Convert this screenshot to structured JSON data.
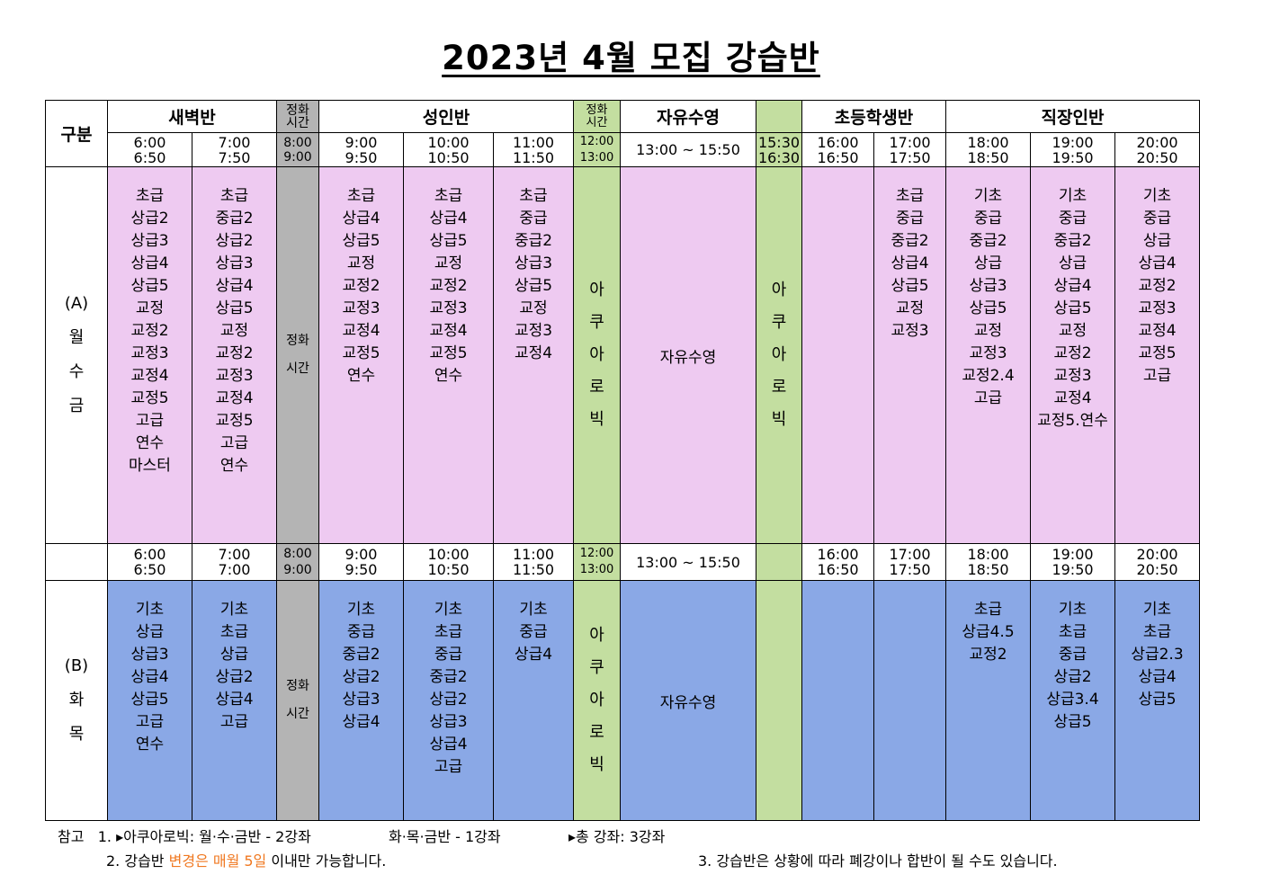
{
  "title": "2023년 4월 모집 강습반",
  "header": {
    "gubun": "구분",
    "saebyeok": "새벽반",
    "break_label": "정화\n시간",
    "seongin": "성인반",
    "jayu": "자유수영",
    "chodeung": "초등학생반",
    "jikjang": "직장인반"
  },
  "times_a": [
    "6:00\n6:50",
    "7:00\n7:50",
    "8:00\n9:00",
    "9:00\n9:50",
    "10:00\n10:50",
    "11:00\n11:50",
    "12:00\n13:00",
    "13:00 ~ 15:50",
    "15:30\n16:30",
    "16:00\n16:50",
    "17:00\n17:50",
    "18:00\n18:50",
    "19:00\n19:50",
    "20:00\n20:50"
  ],
  "times_b": [
    "6:00\n6:50",
    "7:00\n7:00",
    "8:00\n9:00",
    "9:00\n9:50",
    "10:00\n10:50",
    "11:00\n11:50",
    "12:00\n13:00",
    "13:00 ~ 15:50",
    "",
    "16:00\n16:50",
    "17:00\n17:50",
    "18:00\n18:50",
    "19:00\n19:50",
    "20:00\n20:50"
  ],
  "group_a": {
    "label": "(A)\n월\n수\n금"
  },
  "group_b": {
    "label": "(B)\n화\n목"
  },
  "break_cell": "정화\n시간",
  "aqua": "아\n쿠\n아\n로\n빅",
  "free_swim": "자유수영",
  "classes_a": {
    "c6": "초급\n상급2\n상급3\n상급4\n상급5\n교정\n교정2\n교정3\n교정4\n교정5\n고급\n연수\n마스터",
    "c7": "초급\n중급2\n상급2\n상급3\n상급4\n상급5\n교정\n교정2\n교정3\n교정4\n교정5\n고급\n연수",
    "c9": "초급\n상급4\n상급5\n교정\n교정2\n교정3\n교정4\n교정5\n연수",
    "c10": "초급\n상급4\n상급5\n교정\n교정2\n교정3\n교정4\n교정5\n연수",
    "c11": "초급\n중급\n중급2\n상급3\n상급5\n교정\n교정3\n교정4",
    "c16": "",
    "c17": "초급\n중급\n중급2\n상급4\n상급5\n교정\n교정3",
    "c18": "기초\n중급\n중급2\n상급\n상급3\n상급5\n교정\n교정3\n교정2.4\n고급",
    "c19": "기초\n중급\n중급2\n상급\n상급4\n상급5\n교정\n교정2\n교정3\n교정4\n교정5.연수",
    "c20": "기초\n중급\n상급\n상급4\n교정2\n교정3\n교정4\n교정5\n고급"
  },
  "classes_b": {
    "c6": "기초\n상급\n상급3\n상급4\n상급5\n고급\n연수",
    "c7": "기초\n초급\n상급\n상급2\n상급4\n고급",
    "c9": "기초\n중급\n중급2\n상급2\n상급3\n상급4",
    "c10": "기초\n초급\n중급\n중급2\n상급2\n상급3\n상급4\n고급",
    "c11": "기초\n중급\n상급4",
    "c16": "",
    "c17": "",
    "c18": "초급\n상급4.5\n교정2",
    "c19": "기초\n초급\n중급\n상급2\n상급3.4\n상급5",
    "c20": "기초\n초급\n상급2.3\n상급4\n상급5"
  },
  "notes": {
    "prefix": "참고",
    "line1_a": "1. ▸아쿠아로빅: 월·수·금반 - 2강좌",
    "line1_b": "화·목·금반 - 1강좌",
    "line1_c": "▸총 강좌: 3강좌",
    "line2_a": "2. 강습반 ",
    "line2_highlight": "변경은 매월 5일",
    "line2_b": " 이내만 가능합니다.",
    "line3": "3. 강습반은 상황에 따라 폐강이나 합반이 될 수도 있습니다.",
    "highlight_color": "#f07820"
  }
}
